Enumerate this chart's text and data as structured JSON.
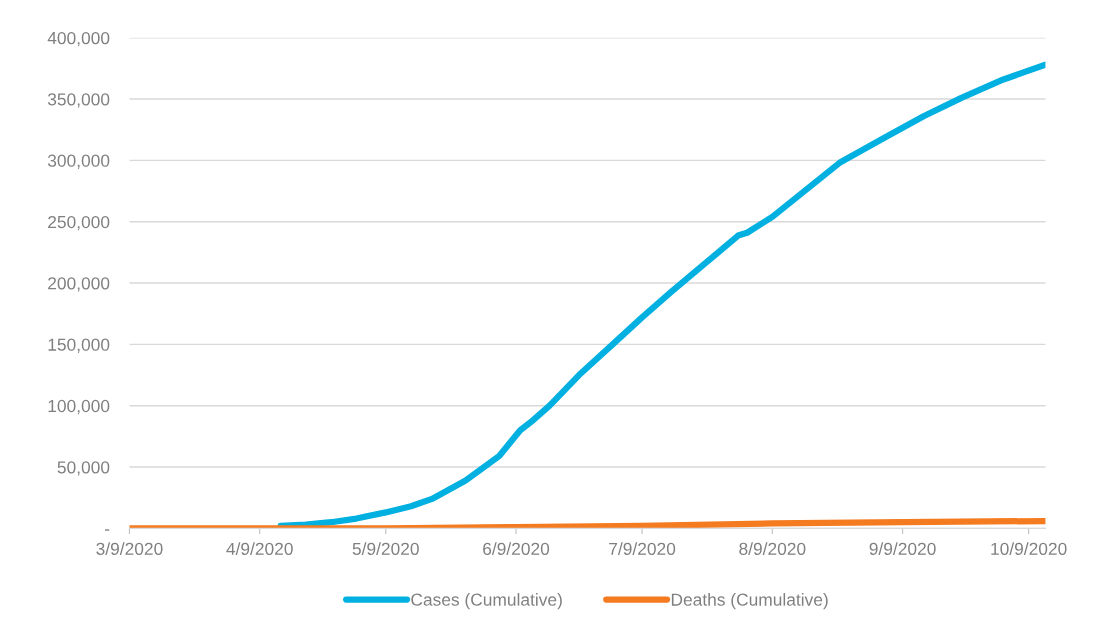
{
  "chart_data": {
    "type": "line",
    "xlim": [
      "2020-03-09",
      "2020-10-13"
    ],
    "xticks": [
      {
        "value": "2020-03-09",
        "label": "3/9/2020"
      },
      {
        "value": "2020-04-09",
        "label": "4/9/2020"
      },
      {
        "value": "2020-05-09",
        "label": "5/9/2020"
      },
      {
        "value": "2020-06-09",
        "label": "6/9/2020"
      },
      {
        "value": "2020-07-09",
        "label": "7/9/2020"
      },
      {
        "value": "2020-08-09",
        "label": "8/9/2020"
      },
      {
        "value": "2020-09-09",
        "label": "9/9/2020"
      },
      {
        "value": "2020-10-09",
        "label": "10/9/2020"
      }
    ],
    "ylim": [
      0,
      400000
    ],
    "yticks": [
      {
        "value": 0,
        "label": "-"
      },
      {
        "value": 50000,
        "label": "50,000"
      },
      {
        "value": 100000,
        "label": "100,000"
      },
      {
        "value": 150000,
        "label": "150,000"
      },
      {
        "value": 200000,
        "label": "200,000"
      },
      {
        "value": 250000,
        "label": "250,000"
      },
      {
        "value": 300000,
        "label": "300,000"
      },
      {
        "value": 350000,
        "label": "350,000"
      },
      {
        "value": 400000,
        "label": "400,000"
      }
    ],
    "grid": "y",
    "legend": "bottom",
    "marker": "none",
    "line_style": "solid",
    "series": [
      {
        "name": "Cases (Cumulative)",
        "color": "#00b0e0",
        "x": [
          "2020-04-14",
          "2020-04-20",
          "2020-04-26",
          "2020-05-02",
          "2020-05-09",
          "2020-05-15",
          "2020-05-20",
          "2020-05-28",
          "2020-06-05",
          "2020-06-10",
          "2020-06-13",
          "2020-06-17",
          "2020-06-24",
          "2020-07-02",
          "2020-07-09",
          "2020-07-16",
          "2020-07-24",
          "2020-08-01",
          "2020-08-03",
          "2020-08-09",
          "2020-08-17",
          "2020-08-25",
          "2020-09-05",
          "2020-09-14",
          "2020-09-23",
          "2020-10-03",
          "2020-10-13"
        ],
        "values": [
          2000,
          3000,
          5000,
          8000,
          13000,
          18000,
          24000,
          39000,
          59000,
          80000,
          88000,
          100000,
          125000,
          150000,
          172000,
          193000,
          216000,
          239000,
          241000,
          254000,
          276000,
          298000,
          319000,
          336000,
          351000,
          366000,
          378000
        ]
      },
      {
        "name": "Deaths (Cumulative)",
        "color": "#f47b20",
        "x": [
          "2020-03-09",
          "2020-04-09",
          "2020-05-09",
          "2020-06-09",
          "2020-07-09",
          "2020-08-09",
          "2020-09-09",
          "2020-10-13"
        ],
        "values": [
          0,
          0,
          0,
          1000,
          2000,
          4000,
          5000,
          6000
        ]
      }
    ]
  }
}
